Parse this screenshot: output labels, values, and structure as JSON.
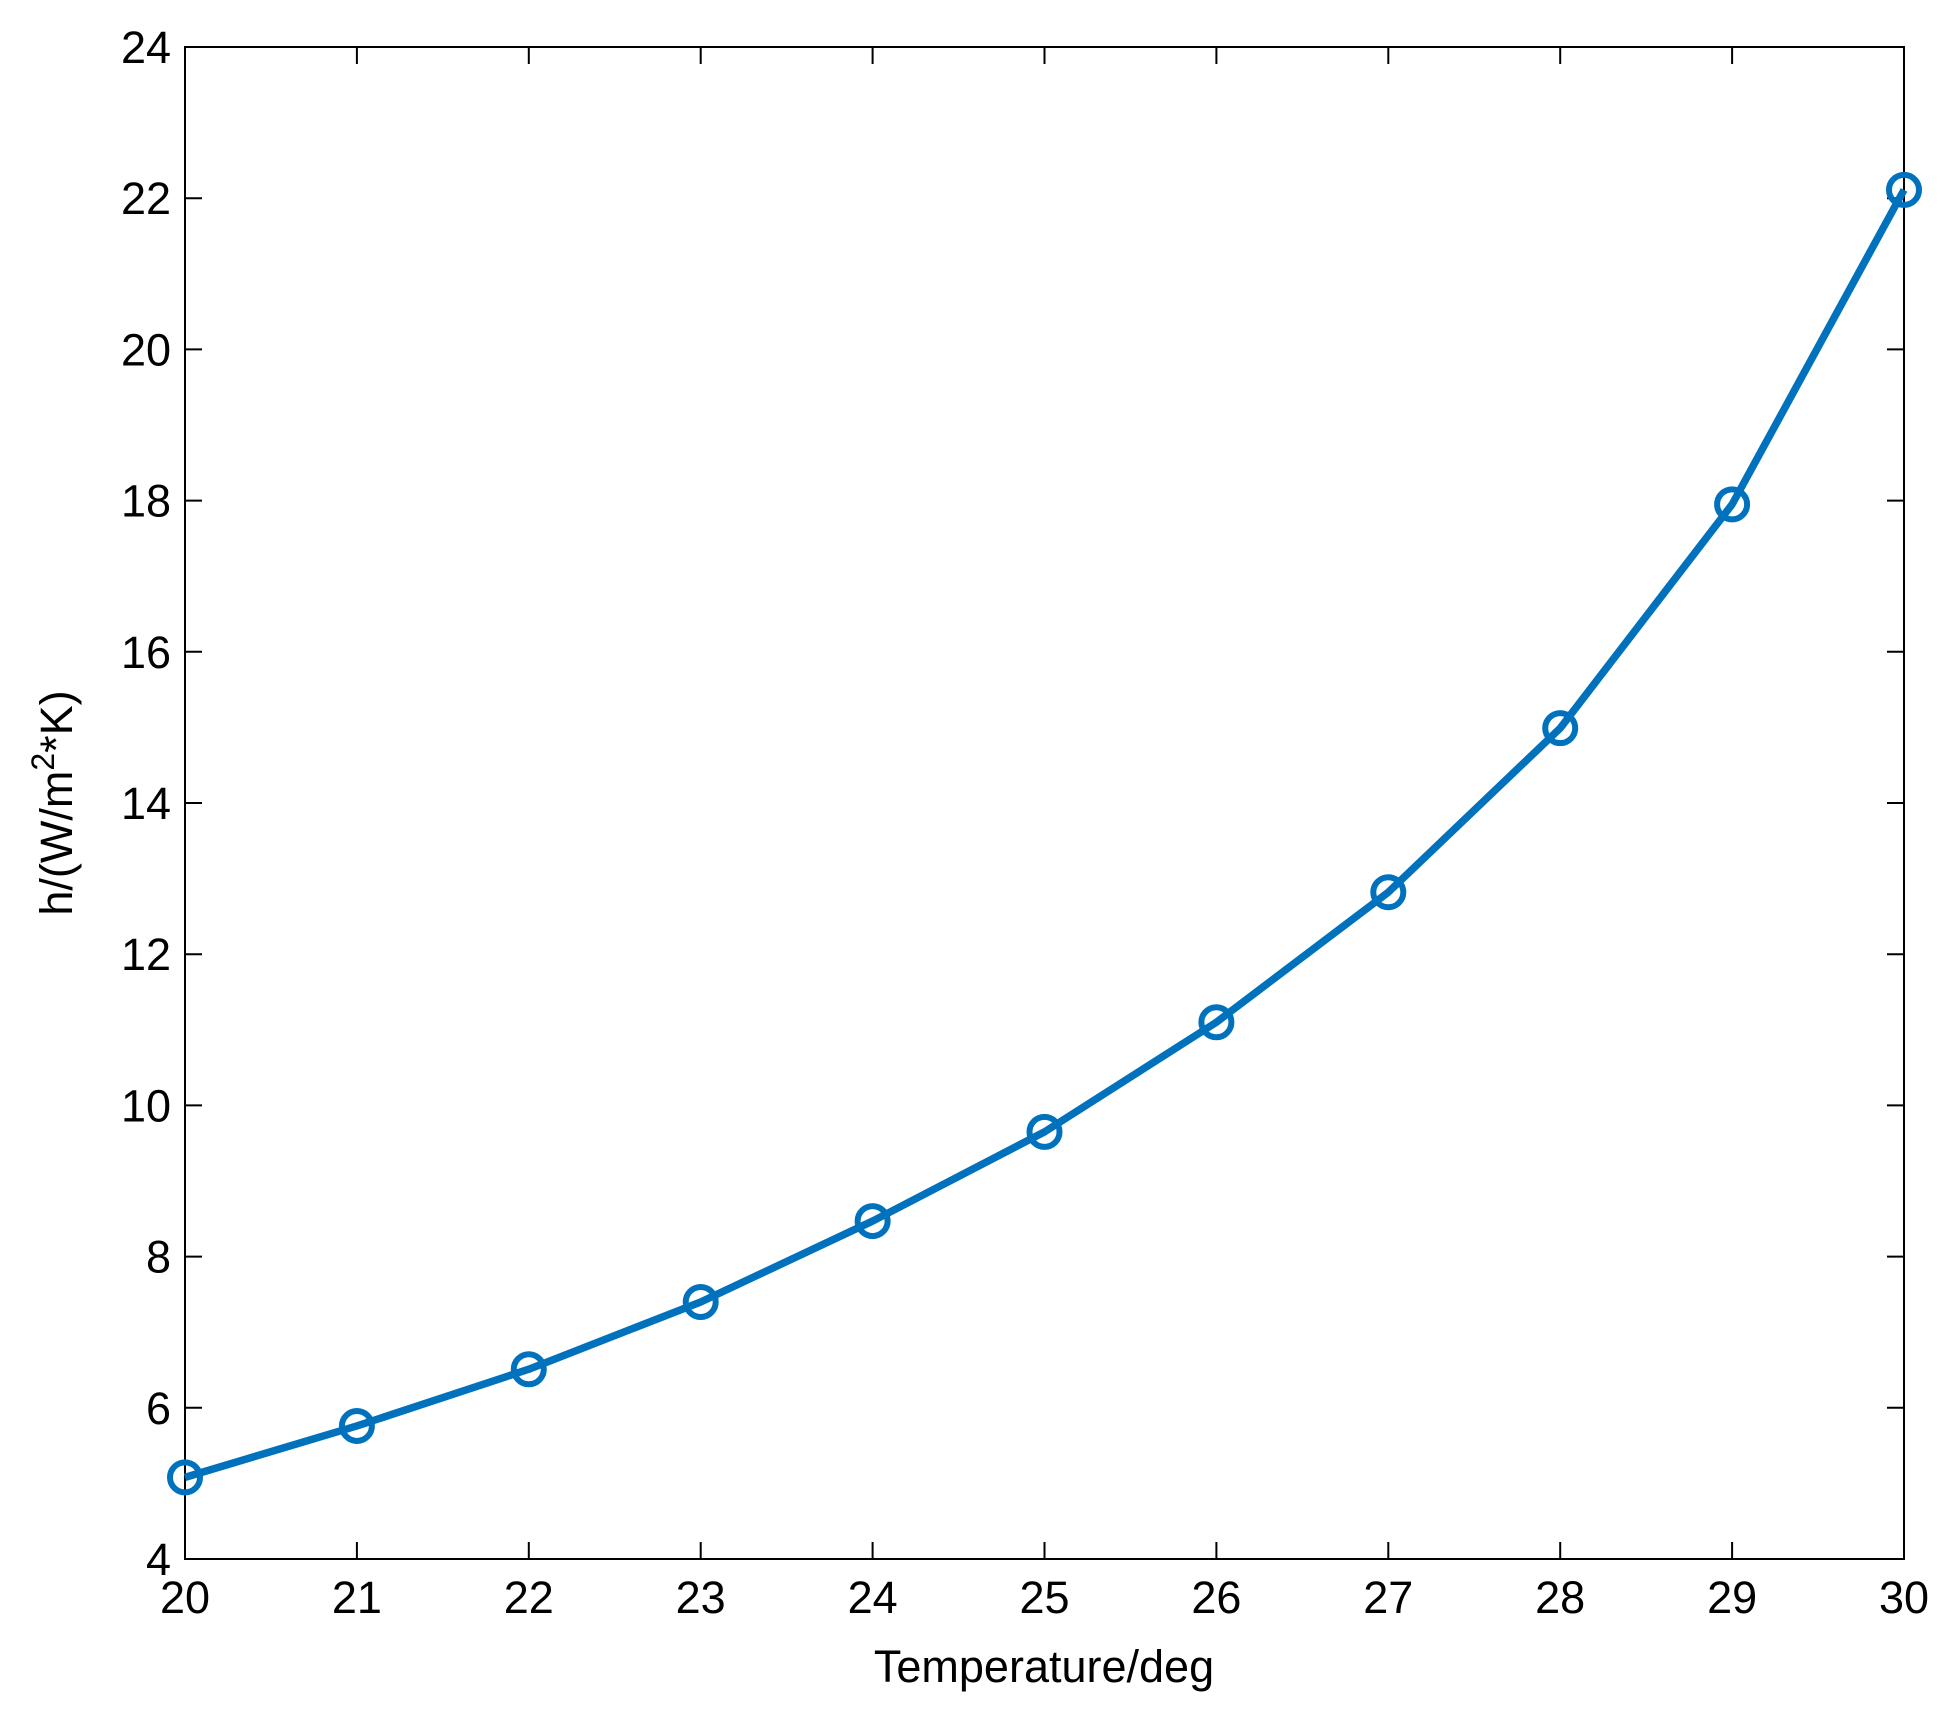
{
  "chart_data": {
    "type": "line",
    "xlabel": "Temperature/deg",
    "ylabel": [
      "h/(W/m",
      "2",
      "*K)"
    ],
    "x": [
      20,
      21,
      22,
      23,
      24,
      25,
      26,
      27,
      28,
      29,
      30
    ],
    "series": [
      {
        "color": "#0072bd",
        "marker": "circle",
        "values": [
          5.08,
          5.76,
          6.51,
          7.4,
          8.47,
          9.65,
          11.1,
          12.82,
          14.99,
          17.95,
          22.11
        ]
      }
    ],
    "xlim": [
      20,
      30
    ],
    "xticks": [
      20,
      21,
      22,
      23,
      24,
      25,
      26,
      27,
      28,
      29,
      30
    ],
    "ylim": [
      4,
      24
    ],
    "yticks": [
      4,
      6,
      8,
      10,
      12,
      14,
      16,
      18,
      20,
      22,
      24
    ],
    "grid": false
  }
}
